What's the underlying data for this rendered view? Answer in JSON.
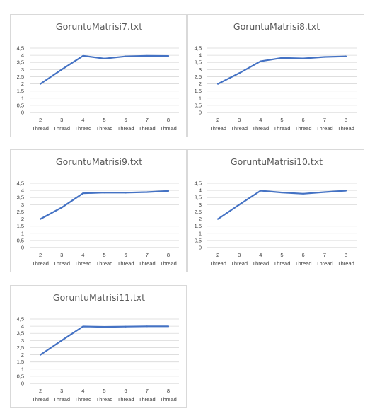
{
  "chart_data": [
    {
      "type": "line",
      "title": "GoruntuMatrisi7.txt",
      "categories": [
        "2 Thread",
        "3 Thread",
        "4 Thread",
        "5 Thread",
        "6 Thread",
        "7 Thread",
        "8 Thread"
      ],
      "category_lines": [
        [
          "2",
          "Thread"
        ],
        [
          "3",
          "Thread"
        ],
        [
          "4",
          "Thread"
        ],
        [
          "5",
          "Thread"
        ],
        [
          "6",
          "Thread"
        ],
        [
          "7",
          "Thread"
        ],
        [
          "8",
          "Thread"
        ]
      ],
      "values": [
        2.0,
        3.0,
        3.96,
        3.77,
        3.92,
        3.96,
        3.95
      ],
      "yticks": [
        "0",
        "0,5",
        "1",
        "1,5",
        "2",
        "2,5",
        "3",
        "3,5",
        "4",
        "4,5"
      ],
      "ylim": [
        0,
        4.5
      ],
      "grid": true,
      "color": "#4472c4"
    },
    {
      "type": "line",
      "title": "GoruntuMatrisi8.txt",
      "categories": [
        "2 Thread",
        "3 Thread",
        "4 Thread",
        "5 Thread",
        "6 Thread",
        "7 Thread",
        "8 Thread"
      ],
      "category_lines": [
        [
          "2",
          "Thread"
        ],
        [
          "3",
          "Thread"
        ],
        [
          "4",
          "Thread"
        ],
        [
          "5",
          "Thread"
        ],
        [
          "6",
          "Thread"
        ],
        [
          "7",
          "Thread"
        ],
        [
          "8",
          "Thread"
        ]
      ],
      "values": [
        2.0,
        2.75,
        3.58,
        3.82,
        3.78,
        3.88,
        3.92
      ],
      "yticks": [
        "0",
        "0,5",
        "1",
        "1,5",
        "2",
        "2,5",
        "3",
        "3,5",
        "4",
        "4,5"
      ],
      "ylim": [
        0,
        4.5
      ],
      "grid": true,
      "color": "#4472c4"
    },
    {
      "type": "line",
      "title": "GoruntuMatrisi9.txt",
      "categories": [
        "2 Thread",
        "3 Thread",
        "4 Thread",
        "5 Thread",
        "6 Thread",
        "7 Thread",
        "8 Thread"
      ],
      "category_lines": [
        [
          "2",
          "Thread"
        ],
        [
          "3",
          "Thread"
        ],
        [
          "4",
          "Thread"
        ],
        [
          "5",
          "Thread"
        ],
        [
          "6",
          "Thread"
        ],
        [
          "7",
          "Thread"
        ],
        [
          "8",
          "Thread"
        ]
      ],
      "values": [
        2.0,
        2.8,
        3.8,
        3.85,
        3.84,
        3.88,
        3.96
      ],
      "yticks": [
        "0",
        "0,5",
        "1",
        "1,5",
        "2",
        "2,5",
        "3",
        "3,5",
        "4",
        "4,5"
      ],
      "ylim": [
        0,
        4.5
      ],
      "grid": true,
      "color": "#4472c4"
    },
    {
      "type": "line",
      "title": "GoruntuMatrisi10.txt",
      "categories": [
        "2 Thread",
        "3 Thread",
        "4 Thread",
        "5 Thread",
        "6 Thread",
        "7 Thread",
        "8 Thread"
      ],
      "category_lines": [
        [
          "2",
          "Thread"
        ],
        [
          "3",
          "Thread"
        ],
        [
          "4",
          "Thread"
        ],
        [
          "5",
          "Thread"
        ],
        [
          "6",
          "Thread"
        ],
        [
          "7",
          "Thread"
        ],
        [
          "8",
          "Thread"
        ]
      ],
      "values": [
        2.0,
        3.0,
        3.98,
        3.85,
        3.77,
        3.88,
        3.98
      ],
      "yticks": [
        "0",
        "0,5",
        "1",
        "1,5",
        "2",
        "2,5",
        "3",
        "3,5",
        "4",
        "4,5"
      ],
      "ylim": [
        0,
        4.5
      ],
      "grid": true,
      "color": "#4472c4"
    },
    {
      "type": "line",
      "title": "GoruntuMatrisi11.txt",
      "categories": [
        "2 Thread",
        "3 Thread",
        "4 Thread",
        "5 Thread",
        "6 Thread",
        "7 Thread",
        "8 Thread"
      ],
      "category_lines": [
        [
          "2",
          "Thread"
        ],
        [
          "3",
          "Thread"
        ],
        [
          "4",
          "Thread"
        ],
        [
          "5",
          "Thread"
        ],
        [
          "6",
          "Thread"
        ],
        [
          "7",
          "Thread"
        ],
        [
          "8",
          "Thread"
        ]
      ],
      "values": [
        2.0,
        3.0,
        3.98,
        3.95,
        3.97,
        3.99,
        3.99
      ],
      "yticks": [
        "0",
        "0,5",
        "1",
        "1,5",
        "2",
        "2,5",
        "3",
        "3,5",
        "4",
        "4,5"
      ],
      "ylim": [
        0,
        4.5
      ],
      "grid": true,
      "color": "#4472c4"
    }
  ]
}
